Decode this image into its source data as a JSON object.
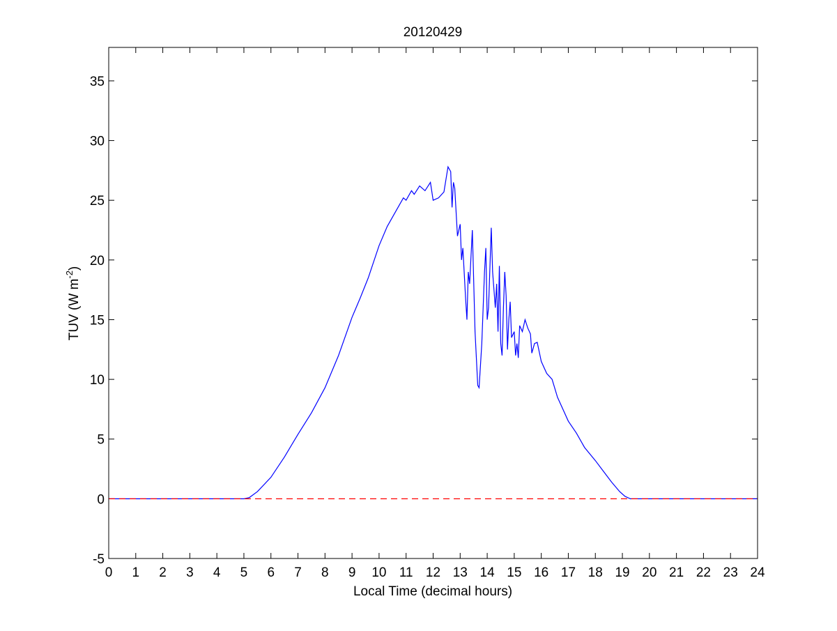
{
  "chart_data": {
    "type": "line",
    "title": "20120429",
    "xlabel": "Local Time (decimal hours)",
    "ylabel": {
      "text": "TUV (W m",
      "superscript": "-2",
      "suffix": ")"
    },
    "xlim": [
      0,
      24
    ],
    "ylim": [
      -5,
      37.8
    ],
    "xticks": [
      0,
      1,
      2,
      3,
      4,
      5,
      6,
      7,
      8,
      9,
      10,
      11,
      12,
      13,
      14,
      15,
      16,
      17,
      18,
      19,
      20,
      21,
      22,
      23,
      24
    ],
    "yticks": [
      -5,
      0,
      5,
      10,
      15,
      20,
      25,
      30,
      35
    ],
    "grid": false,
    "reference_line": {
      "value": 0,
      "color": "#ff0000",
      "style": "dashed"
    },
    "x": [
      0,
      5,
      5.2,
      5.5,
      6,
      6.5,
      7,
      7.5,
      8,
      8.5,
      9,
      9.3,
      9.6,
      10,
      10.3,
      10.6,
      10.9,
      11,
      11.2,
      11.3,
      11.5,
      11.7,
      11.9,
      12,
      12.2,
      12.4,
      12.55,
      12.65,
      12.7,
      12.75,
      12.8,
      12.9,
      13,
      13.05,
      13.1,
      13.2,
      13.25,
      13.3,
      13.35,
      13.45,
      13.55,
      13.65,
      13.7,
      13.8,
      13.9,
      13.95,
      14,
      14.05,
      14.15,
      14.2,
      14.3,
      14.35,
      14.4,
      14.45,
      14.5,
      14.55,
      14.6,
      14.65,
      14.7,
      14.75,
      14.8,
      14.85,
      14.9,
      15,
      15.05,
      15.1,
      15.15,
      15.2,
      15.3,
      15.4,
      15.5,
      15.6,
      15.65,
      15.75,
      15.85,
      16,
      16.2,
      16.4,
      16.6,
      16.8,
      17,
      17.3,
      17.6,
      18,
      18.3,
      18.6,
      18.9,
      19.1,
      19.3,
      24
    ],
    "series": [
      {
        "color": "#0000ff",
        "values": [
          0,
          0,
          0.1,
          0.6,
          1.8,
          3.5,
          5.4,
          7.2,
          9.3,
          12,
          15.2,
          16.8,
          18.5,
          21.2,
          22.8,
          24,
          25.2,
          25,
          25.8,
          25.5,
          26.2,
          25.8,
          26.5,
          25,
          25.2,
          25.7,
          27.8,
          27.4,
          24.4,
          26.5,
          26,
          22,
          23,
          20,
          21,
          16.8,
          15,
          19,
          18,
          22.5,
          14,
          9.5,
          9.3,
          13,
          19,
          21,
          15,
          16,
          22.7,
          19,
          16,
          18,
          14,
          19.5,
          13,
          12,
          16,
          19,
          17,
          12.5,
          15,
          16.5,
          13.5,
          14,
          12,
          13,
          11.8,
          14.5,
          14,
          15,
          14.3,
          13.8,
          12.2,
          13,
          13.1,
          11.5,
          10.5,
          10,
          8.5,
          7.5,
          6.5,
          5.5,
          4.3,
          3.2,
          2.3,
          1.4,
          0.6,
          0.2,
          0,
          0
        ]
      }
    ]
  }
}
